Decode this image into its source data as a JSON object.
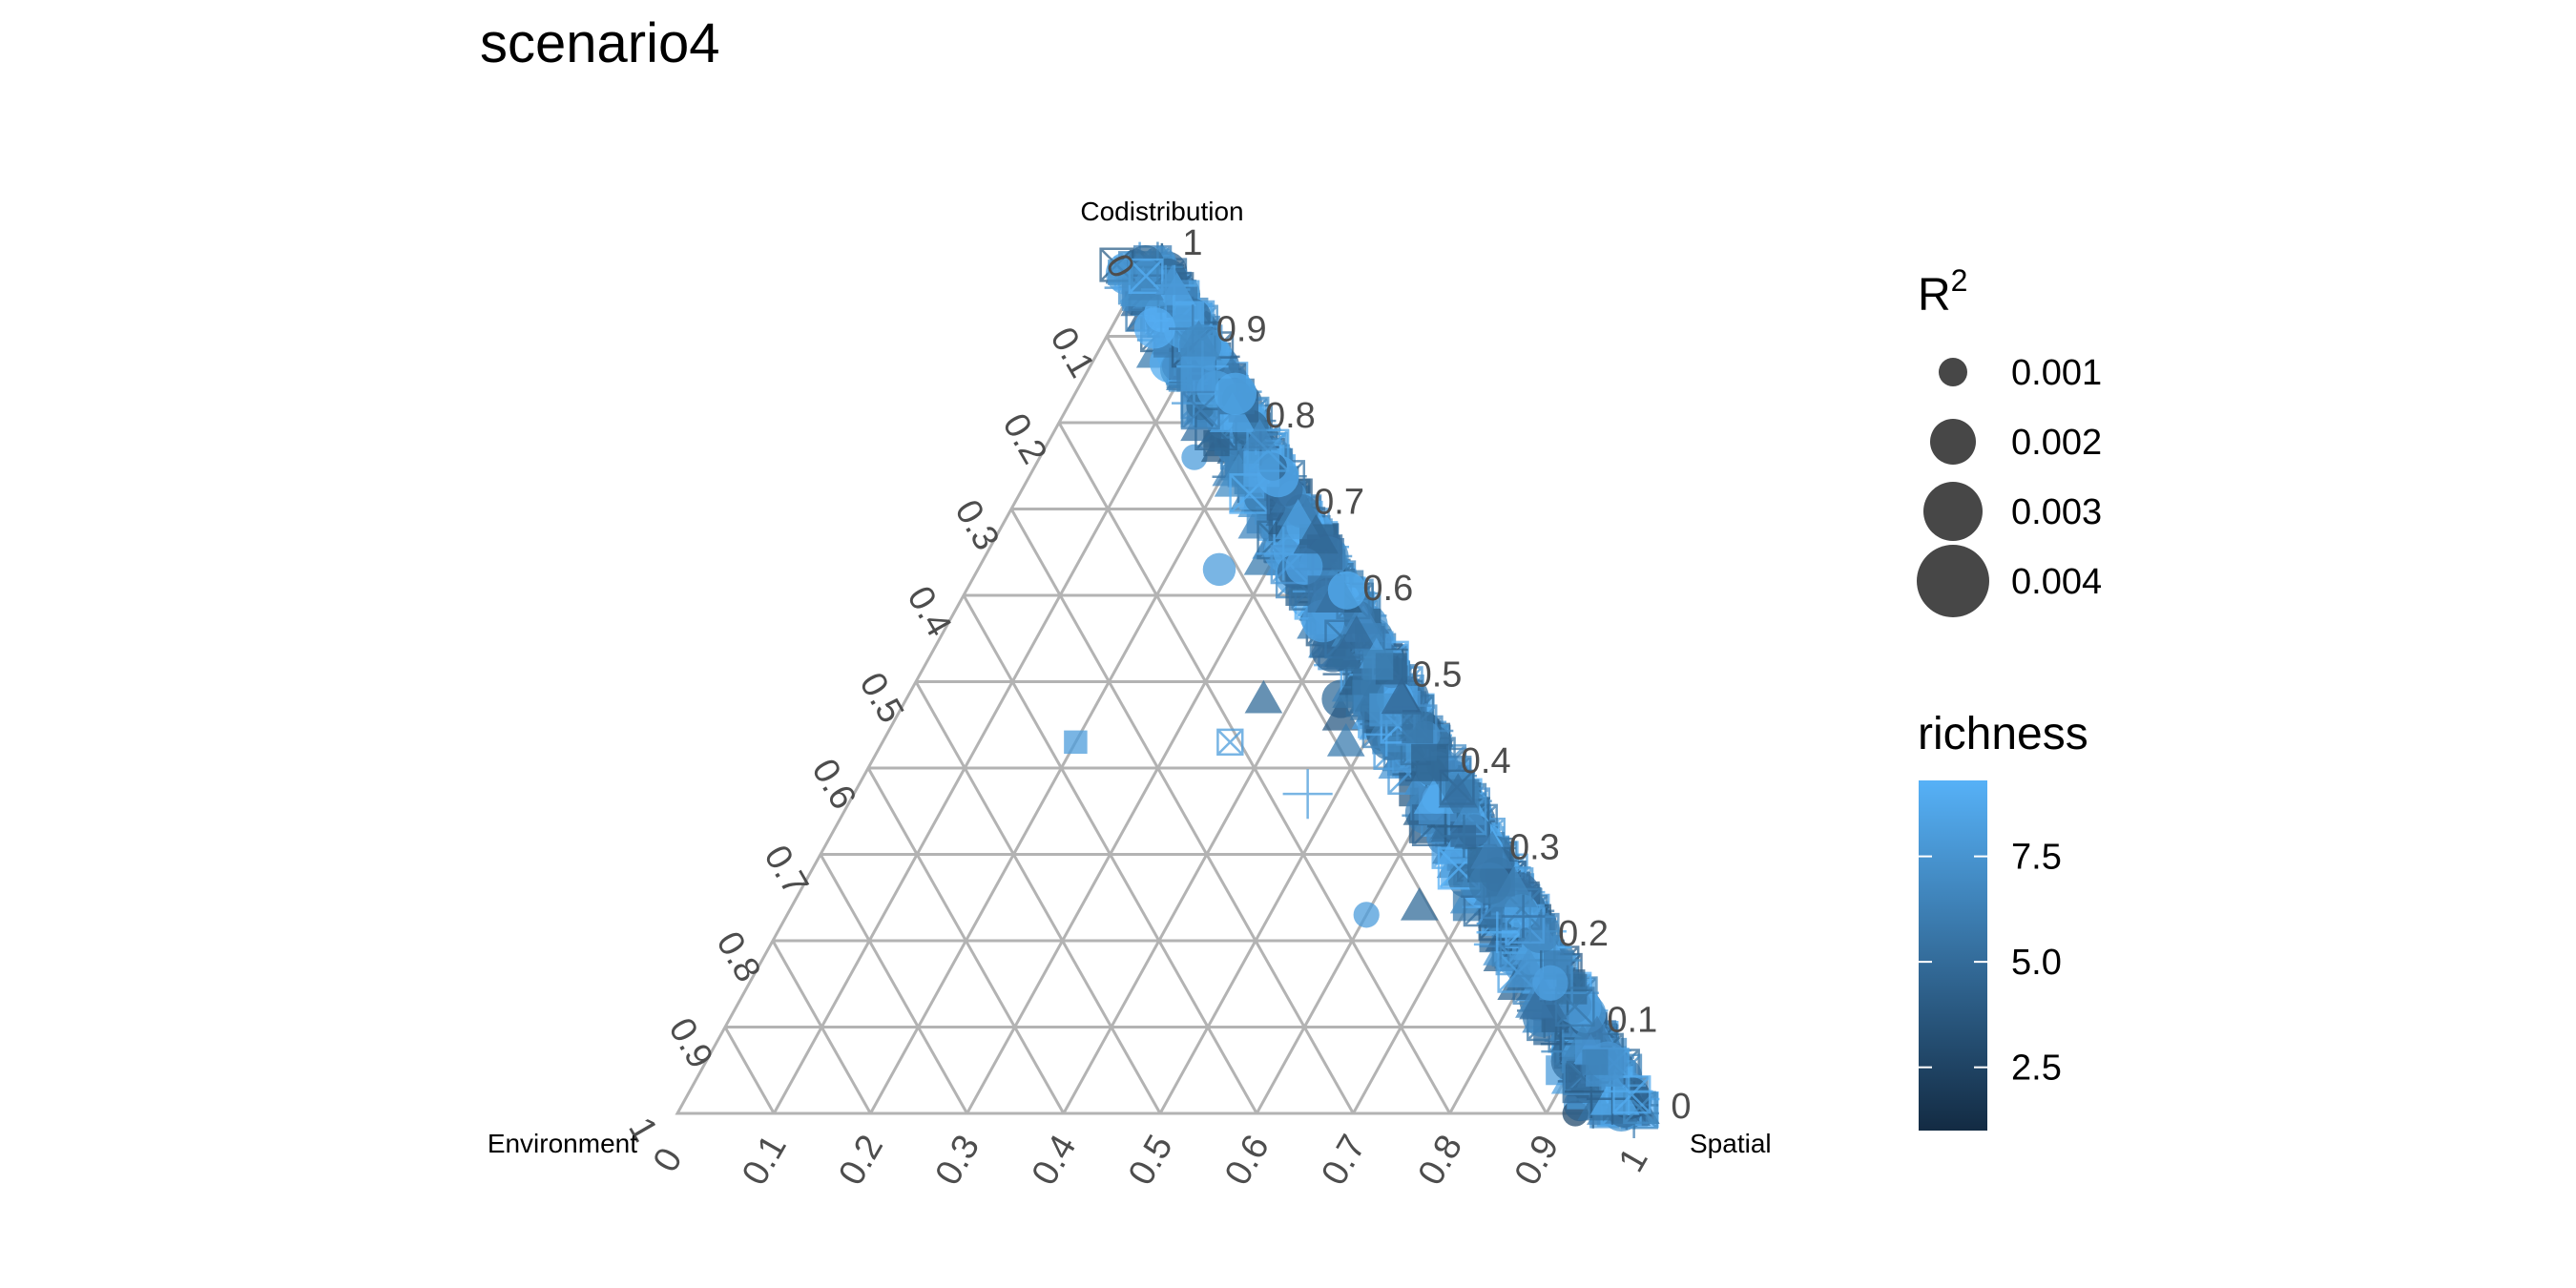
{
  "chart_data": {
    "type": "scatter",
    "subtype": "ternary",
    "title": "scenario4",
    "axes": {
      "top": "Codistribution",
      "left": "Environment",
      "right": "Spatial"
    },
    "ticks": [
      "0",
      "0.1",
      "0.2",
      "0.3",
      "0.4",
      "0.5",
      "0.6",
      "0.7",
      "0.8",
      "0.9",
      "1"
    ],
    "right_edge_ticks": [
      "1",
      "0.9",
      "0.8",
      "0.7",
      "0.6",
      "0.5",
      "0.4",
      "0.3",
      "0.2",
      "0.1",
      "0"
    ],
    "left_edge_ticks": [
      "0",
      "0.1",
      "0.2",
      "0.3",
      "0.4",
      "0.5",
      "0.6",
      "0.7",
      "0.8",
      "0.9",
      "1"
    ],
    "bottom_ticks": [
      "0",
      "0.1",
      "0.2",
      "0.3",
      "0.4",
      "0.5",
      "0.6",
      "0.7",
      "0.8",
      "0.9",
      "1"
    ],
    "grid": true,
    "legend_size": {
      "title": "R",
      "title_superscript": "2",
      "values": [
        "0.001",
        "0.002",
        "0.003",
        "0.004"
      ]
    },
    "legend_color": {
      "title": "richness",
      "ticks": [
        "2.5",
        "5.0",
        "7.5"
      ],
      "tick_values": [
        2.5,
        5.0,
        7.5
      ],
      "range": [
        1,
        9.3
      ],
      "low_color": "#132b43",
      "high_color": "#56b1f7"
    },
    "point_alpha": 0.75,
    "shapes": [
      "circle",
      "triangle",
      "square",
      "plus",
      "boxx"
    ],
    "points_note": "most points lie along the Codistribution–Spatial edge (Environment ≈ 0–0.08)",
    "points": [
      {
        "env": 0.04,
        "cod": 0.17,
        "shape": "circle",
        "r2": 0.002,
        "richness": 8
      },
      {
        "env": 0.08,
        "cod": 0.76,
        "shape": "circle",
        "r2": 0.001,
        "richness": 8
      },
      {
        "env": 0.12,
        "cod": 0.63,
        "shape": "circle",
        "r2": 0.002,
        "richness": 8
      },
      {
        "env": 0.37,
        "cod": 0.43,
        "shape": "square",
        "r2": 0.001,
        "richness": 8
      },
      {
        "env": 0.21,
        "cod": 0.43,
        "shape": "boxx",
        "r2": 0.001,
        "richness": 8
      },
      {
        "env": 0.15,
        "cod": 0.48,
        "shape": "triangle",
        "r2": 0.002,
        "richness": 5
      },
      {
        "env": 0.16,
        "cod": 0.37,
        "shape": "plus",
        "r2": 0.003,
        "richness": 8
      },
      {
        "env": 0.17,
        "cod": 0.23,
        "shape": "circle",
        "r2": 0.001,
        "richness": 8
      },
      {
        "env": 0.11,
        "cod": 0.24,
        "shape": "triangle",
        "r2": 0.002,
        "richness": 5
      },
      {
        "env": 0.06,
        "cod": 0.24,
        "shape": "square",
        "r2": 0.002,
        "richness": 6
      },
      {
        "env": 0.05,
        "cod": 0.11,
        "shape": "triangle",
        "r2": 0.002,
        "richness": 7
      },
      {
        "env": 0.04,
        "cod": 0.07,
        "shape": "circle",
        "r2": 0.003,
        "richness": 8
      },
      {
        "env": 0.06,
        "cod": 0.01,
        "shape": "circle",
        "r2": 0.002,
        "richness": 8
      },
      {
        "env": 0.06,
        "cod": 0.05,
        "shape": "square",
        "r2": 0.002,
        "richness": 8
      },
      {
        "env": 0.04,
        "cod": 0.04,
        "shape": "circle",
        "r2": 0.003,
        "richness": 5
      },
      {
        "env": 0.01,
        "cod": 0.04,
        "shape": "circle",
        "r2": 0.002,
        "richness": 9
      },
      {
        "env": 0.07,
        "cod": 0.0,
        "shape": "circle",
        "r2": 0.001,
        "richness": 3
      },
      {
        "env": 0.04,
        "cod": 0.0,
        "shape": "square",
        "r2": 0.002,
        "richness": 8
      },
      {
        "env": 0.02,
        "cod": 0.09,
        "shape": "circle",
        "r2": 0.002,
        "richness": 4
      },
      {
        "env": 0.01,
        "cod": 0.08,
        "shape": "boxx",
        "r2": 0.003,
        "richness": 5
      },
      {
        "env": 0.0,
        "cod": 0.05,
        "shape": "boxx",
        "r2": 0.004,
        "richness": 5
      },
      {
        "env": 0.02,
        "cod": 0.16,
        "shape": "plus",
        "r2": 0.003,
        "richness": 8
      },
      {
        "env": 0.02,
        "cod": 0.15,
        "shape": "boxx",
        "r2": 0.002,
        "richness": 5
      },
      {
        "env": 0.06,
        "cod": 0.88,
        "shape": "triangle",
        "r2": 0.002,
        "richness": 6
      },
      {
        "env": 0.05,
        "cod": 0.82,
        "shape": "boxx",
        "r2": 0.001,
        "richness": 7
      },
      {
        "env": 0.04,
        "cod": 0.86,
        "shape": "square",
        "r2": 0.002,
        "richness": 3
      },
      {
        "env": 0.02,
        "cod": 0.97,
        "shape": "boxx",
        "r2": 0.001,
        "richness": 8
      },
      {
        "env": 0.07,
        "cod": 0.64,
        "shape": "triangle",
        "r2": 0.002,
        "richness": 6
      },
      {
        "env": 0.07,
        "cod": 0.48,
        "shape": "circle",
        "r2": 0.003,
        "richness": 5
      },
      {
        "env": 0.08,
        "cod": 0.46,
        "shape": "triangle",
        "r2": 0.002,
        "richness": 4
      },
      {
        "env": 0.09,
        "cod": 0.43,
        "shape": "triangle",
        "r2": 0.002,
        "richness": 6
      },
      {
        "env": 0.06,
        "cod": 0.33,
        "shape": "square",
        "r2": 0.002,
        "richness": 4
      },
      {
        "env": 0.03,
        "cod": 0.57,
        "shape": "boxx",
        "r2": 0.003,
        "richness": 5
      },
      {
        "env": 0.02,
        "cod": 0.27,
        "shape": "boxx",
        "r2": 0.002,
        "richness": 4
      },
      {
        "env": 0.01,
        "cod": 0.35,
        "shape": "boxx",
        "r2": 0.003,
        "richness": 6
      },
      {
        "env": 0.03,
        "cod": 0.75,
        "shape": "boxx",
        "r2": 0.003,
        "richness": 6
      }
    ]
  }
}
